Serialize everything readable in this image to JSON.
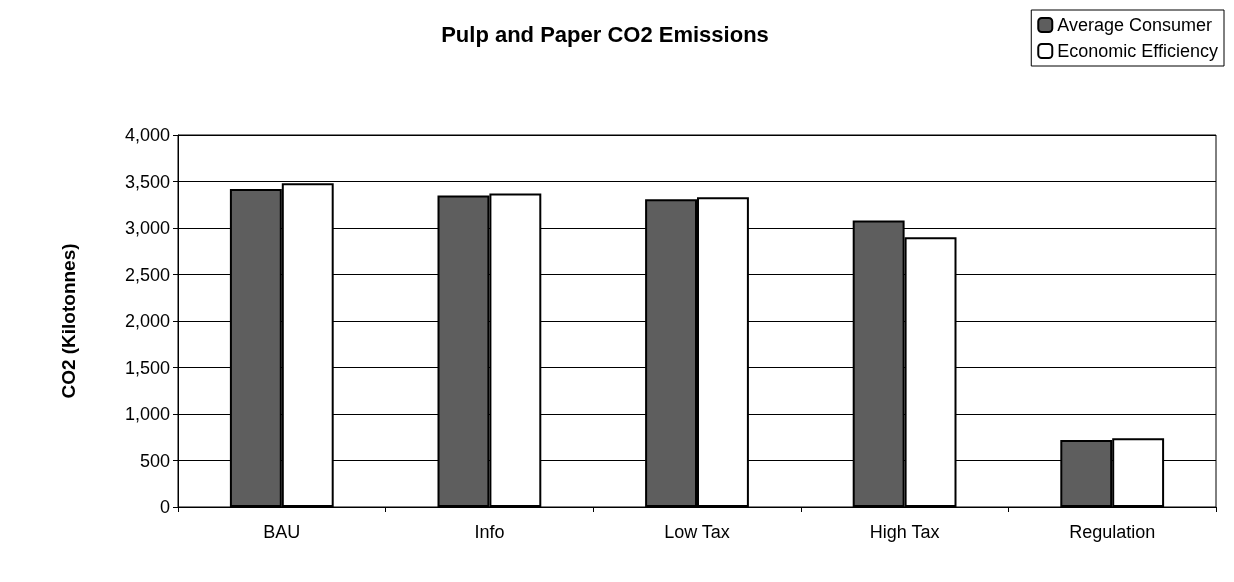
{
  "chart_data": {
    "type": "bar",
    "title": "Pulp and Paper CO2 Emissions",
    "ylabel": "CO2 (Kilotonnes)",
    "categories": [
      "BAU",
      "Info",
      "Low Tax",
      "High Tax",
      "Regulation"
    ],
    "series": [
      {
        "name": "Average Consumer",
        "color": "#5e5e5e",
        "values": [
          3420,
          3350,
          3310,
          3080,
          720
        ]
      },
      {
        "name": "Economic Efficiency",
        "color": "#ffffff",
        "values": [
          3480,
          3370,
          3330,
          2900,
          740
        ]
      }
    ],
    "ylim": [
      0,
      4000
    ],
    "yticks": [
      0,
      500,
      {
        "value": 1000,
        "label": "1,000"
      },
      {
        "value": 1500,
        "label": "1,500"
      },
      {
        "value": 2000,
        "label": "2,000"
      },
      {
        "value": 2500,
        "label": "2,500"
      },
      {
        "value": 3000,
        "label": "3,000"
      },
      {
        "value": 3500,
        "label": "3,500"
      },
      {
        "value": 4000,
        "label": "4,000"
      }
    ],
    "grid": "y",
    "legend": "top right"
  }
}
